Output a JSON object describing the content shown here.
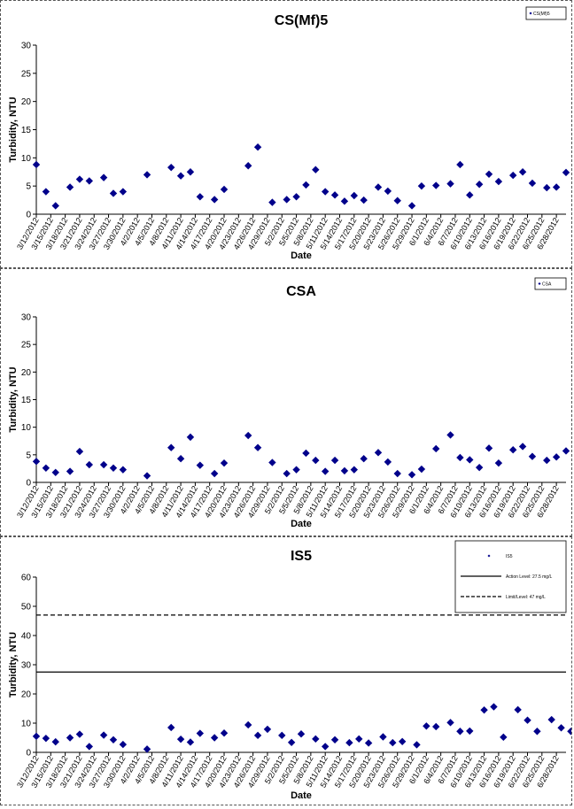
{
  "chart_data": [
    {
      "type": "scatter",
      "title": "CS(Mf)5",
      "xlabel": "Date",
      "ylabel": "Turbidity, NTU",
      "ylim": [
        0,
        30
      ],
      "yticks": [
        "0",
        "5",
        "10",
        "15",
        "20",
        "25",
        "30"
      ],
      "grid": false,
      "legend_position": "top-right",
      "x_tick_labels": [
        "3/12/2012",
        "3/15/2012",
        "3/18/2012",
        "3/21/2012",
        "3/24/2012",
        "3/27/2012",
        "3/30/2012",
        "4/2/2012",
        "4/5/2012",
        "4/8/2012",
        "4/11/2012",
        "4/14/2012",
        "4/17/2012",
        "4/20/2012",
        "4/23/2012",
        "4/26/2012",
        "4/29/2012",
        "5/2/2012",
        "5/5/2012",
        "5/8/2012",
        "5/11/2012",
        "5/14/2012",
        "5/17/2012",
        "5/20/2012",
        "5/23/2012",
        "5/26/2012",
        "5/29/2012",
        "6/1/2012",
        "6/4/2012",
        "6/7/2012",
        "6/10/2012",
        "6/13/2012",
        "6/16/2012",
        "6/19/2012",
        "6/22/2012",
        "6/25/2012",
        "6/28/2012"
      ],
      "series": [
        {
          "name": "CS(Mf)5",
          "color": "#00008b",
          "marker": "diamond",
          "x": [
            "3/12/2012",
            "3/14/2012",
            "3/16/2012",
            "3/19/2012",
            "3/21/2012",
            "3/23/2012",
            "3/26/2012",
            "3/28/2012",
            "3/30/2012",
            "4/4/2012",
            "4/9/2012",
            "4/11/2012",
            "4/13/2012",
            "4/15/2012",
            "4/18/2012",
            "4/20/2012",
            "4/25/2012",
            "4/27/2012",
            "4/30/2012",
            "5/3/2012",
            "5/5/2012",
            "5/7/2012",
            "5/9/2012",
            "5/11/2012",
            "5/13/2012",
            "5/15/2012",
            "5/17/2012",
            "5/19/2012",
            "5/22/2012",
            "5/24/2012",
            "5/26/2012",
            "5/29/2012",
            "5/31/2012",
            "6/3/2012",
            "6/6/2012",
            "6/8/2012",
            "6/10/2012",
            "6/12/2012",
            "6/14/2012",
            "6/16/2012",
            "6/19/2012",
            "6/21/2012",
            "6/23/2012",
            "6/26/2012",
            "6/28/2012",
            "6/30/2012"
          ],
          "y": [
            8.8,
            4.0,
            1.5,
            4.8,
            6.2,
            5.9,
            6.5,
            3.7,
            4.0,
            7.0,
            8.3,
            6.8,
            7.5,
            3.1,
            2.6,
            4.4,
            8.6,
            11.9,
            2.1,
            2.6,
            3.1,
            5.2,
            7.9,
            4.0,
            3.4,
            2.3,
            3.3,
            2.5,
            4.8,
            4.1,
            2.4,
            1.5,
            5.0,
            5.1,
            5.4,
            8.8,
            3.4,
            5.3,
            7.1,
            5.8,
            6.9,
            7.5,
            5.5,
            4.7,
            4.8,
            7.4
          ]
        }
      ]
    },
    {
      "type": "scatter",
      "title": "CSA",
      "xlabel": "Date",
      "ylabel": "Turbidity, NTU",
      "ylim": [
        0,
        30
      ],
      "yticks": [
        "0",
        "5",
        "10",
        "15",
        "20",
        "25",
        "30"
      ],
      "grid": false,
      "legend_position": "top-right",
      "x_tick_labels": [
        "3/12/2012",
        "3/15/2012",
        "3/18/2012",
        "3/21/2012",
        "3/24/2012",
        "3/27/2012",
        "3/30/2012",
        "4/2/2012",
        "4/5/2012",
        "4/8/2012",
        "4/11/2012",
        "4/14/2012",
        "4/17/2012",
        "4/20/2012",
        "4/23/2012",
        "4/26/2012",
        "4/29/2012",
        "5/2/2012",
        "5/5/2012",
        "5/8/2012",
        "5/11/2012",
        "5/14/2012",
        "5/17/2012",
        "5/20/2012",
        "5/23/2012",
        "5/26/2012",
        "5/29/2012",
        "6/1/2012",
        "6/4/2012",
        "6/7/2012",
        "6/10/2012",
        "6/13/2012",
        "6/16/2012",
        "6/19/2012",
        "6/22/2012",
        "6/25/2012",
        "6/28/2012"
      ],
      "series": [
        {
          "name": "CSA",
          "color": "#00008b",
          "marker": "diamond",
          "x": [
            "3/12/2012",
            "3/14/2012",
            "3/16/2012",
            "3/19/2012",
            "3/21/2012",
            "3/23/2012",
            "3/26/2012",
            "3/28/2012",
            "3/30/2012",
            "4/4/2012",
            "4/9/2012",
            "4/11/2012",
            "4/13/2012",
            "4/15/2012",
            "4/18/2012",
            "4/20/2012",
            "4/25/2012",
            "4/27/2012",
            "4/30/2012",
            "5/3/2012",
            "5/5/2012",
            "5/7/2012",
            "5/9/2012",
            "5/11/2012",
            "5/13/2012",
            "5/15/2012",
            "5/17/2012",
            "5/19/2012",
            "5/22/2012",
            "5/24/2012",
            "5/26/2012",
            "5/29/2012",
            "5/31/2012",
            "6/3/2012",
            "6/6/2012",
            "6/8/2012",
            "6/10/2012",
            "6/12/2012",
            "6/14/2012",
            "6/16/2012",
            "6/19/2012",
            "6/21/2012",
            "6/23/2012",
            "6/26/2012",
            "6/28/2012",
            "6/30/2012"
          ],
          "y": [
            3.8,
            2.6,
            1.8,
            2.0,
            5.6,
            3.2,
            3.2,
            2.6,
            2.3,
            1.2,
            6.3,
            4.3,
            8.2,
            3.1,
            1.6,
            3.5,
            8.5,
            6.3,
            3.6,
            1.6,
            2.3,
            5.3,
            4.0,
            2.0,
            4.0,
            2.1,
            2.3,
            4.3,
            5.4,
            3.7,
            1.6,
            1.4,
            2.4,
            6.1,
            8.6,
            4.5,
            4.1,
            2.7,
            6.2,
            3.5,
            5.9,
            6.5,
            4.7,
            4.0,
            4.6,
            5.7
          ]
        }
      ]
    },
    {
      "type": "scatter",
      "title": "IS5",
      "xlabel": "Date",
      "ylabel": "Turbidity, NTU",
      "ylim": [
        0,
        60
      ],
      "yticks": [
        "0",
        "10",
        "20",
        "30",
        "40",
        "50",
        "60"
      ],
      "grid": false,
      "legend_position": "top-right",
      "x_tick_labels": [
        "3/12/2012",
        "3/15/2012",
        "3/18/2012",
        "3/21/2012",
        "3/24/2012",
        "3/27/2012",
        "3/30/2012",
        "4/2/2012",
        "4/5/2012",
        "4/8/2012",
        "4/11/2012",
        "4/14/2012",
        "4/17/2012",
        "4/20/2012",
        "4/23/2012",
        "4/26/2012",
        "4/29/2012",
        "5/2/2012",
        "5/5/2012",
        "5/8/2012",
        "5/11/2012",
        "5/14/2012",
        "5/17/2012",
        "5/20/2012",
        "5/23/2012",
        "5/26/2012",
        "5/29/2012",
        "6/1/2012",
        "6/4/2012",
        "6/7/2012",
        "6/10/2012",
        "6/13/2012",
        "6/16/2012",
        "6/19/2012",
        "6/22/2012",
        "6/25/2012",
        "6/28/2012"
      ],
      "series": [
        {
          "name": "IS5",
          "color": "#00008b",
          "marker": "diamond",
          "x": [
            "3/12/2012",
            "3/14/2012",
            "3/16/2012",
            "3/19/2012",
            "3/21/2012",
            "3/23/2012",
            "3/26/2012",
            "3/28/2012",
            "3/30/2012",
            "4/4/2012",
            "4/9/2012",
            "4/11/2012",
            "4/13/2012",
            "4/15/2012",
            "4/18/2012",
            "4/20/2012",
            "4/25/2012",
            "4/27/2012",
            "4/29/2012",
            "5/2/2012",
            "5/4/2012",
            "5/6/2012",
            "5/9/2012",
            "5/11/2012",
            "5/13/2012",
            "5/16/2012",
            "5/18/2012",
            "5/20/2012",
            "5/23/2012",
            "5/25/2012",
            "5/27/2012",
            "5/30/2012",
            "6/1/2012",
            "6/3/2012",
            "6/6/2012",
            "6/8/2012",
            "6/10/2012",
            "6/13/2012",
            "6/15/2012",
            "6/17/2012",
            "6/20/2012",
            "6/22/2012",
            "6/24/2012",
            "6/27/2012",
            "6/29/2012",
            "7/1/2012"
          ],
          "y": [
            5.5,
            4.8,
            3.6,
            5.0,
            6.2,
            2.0,
            5.9,
            4.3,
            2.7,
            1.1,
            8.5,
            4.5,
            3.5,
            6.5,
            5.0,
            6.6,
            9.4,
            5.8,
            7.9,
            5.8,
            3.4,
            6.3,
            4.6,
            2.0,
            4.3,
            3.3,
            4.6,
            3.2,
            5.3,
            3.3,
            3.7,
            2.6,
            9.0,
            8.8,
            10.2,
            7.2,
            7.3,
            14.5,
            15.6,
            5.2,
            14.6,
            11.0,
            7.2,
            11.2,
            8.4,
            7.2
          ]
        }
      ],
      "reference_lines": [
        {
          "name": "Action Level: 27.5 mg/L",
          "value": 27.5,
          "style": "solid"
        },
        {
          "name": "Limit/Level: 47 mg/L",
          "value": 47,
          "style": "dashed"
        }
      ]
    }
  ]
}
